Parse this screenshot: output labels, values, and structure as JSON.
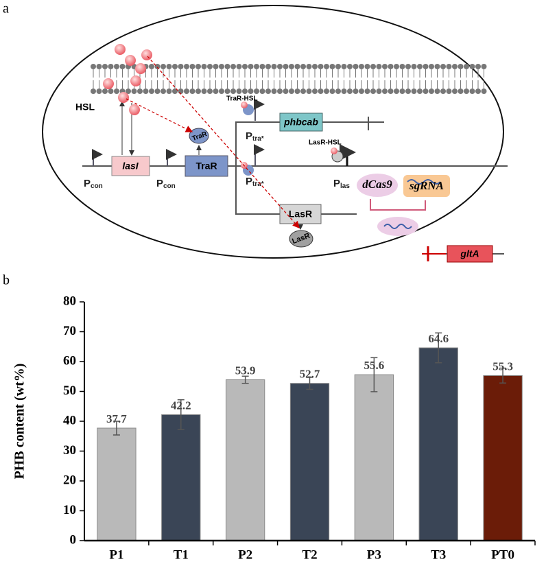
{
  "panel_labels": {
    "a": "a",
    "b": "b"
  },
  "diagram": {
    "hsl": "HSL",
    "lasI": "lasI",
    "traR_box": "TraR",
    "traR_oval": "TraR",
    "traR_hsl": "TraR-HSL",
    "lasR_hsl": "LasR-HSL",
    "phbcab": "phbcab",
    "lasR_box": "LasR",
    "lasR_oval": "LasR",
    "dcas9": "dCas9",
    "sgrna": "sgRNA",
    "glta": "gltA",
    "p_con_1": {
      "main": "P",
      "sub": "con"
    },
    "p_con_2": {
      "main": "P",
      "sub": "con"
    },
    "p_tra_1": {
      "main": "P",
      "sub": "tra*"
    },
    "p_tra_2": {
      "main": "P",
      "sub": "tra*"
    },
    "p_las": {
      "main": "P",
      "sub": "las"
    }
  },
  "chart_data": {
    "type": "bar",
    "ylabel": "PHB content (wt%)",
    "categories": [
      "P1",
      "T1",
      "P2",
      "T2",
      "P3",
      "T3",
      "PT0"
    ],
    "values": [
      37.7,
      42.2,
      53.9,
      52.7,
      55.6,
      64.6,
      55.3
    ],
    "errors": [
      2.3,
      5.0,
      1.2,
      2.0,
      5.7,
      5.0,
      2.5
    ],
    "colors": [
      "#b9b9b9",
      "#3a4556",
      "#b9b9b9",
      "#3a4556",
      "#b9b9b9",
      "#3a4556",
      "#6b1c08"
    ],
    "ylim": [
      0,
      80
    ],
    "yticks": [
      0,
      10,
      20,
      30,
      40,
      50,
      60,
      70,
      80
    ]
  }
}
